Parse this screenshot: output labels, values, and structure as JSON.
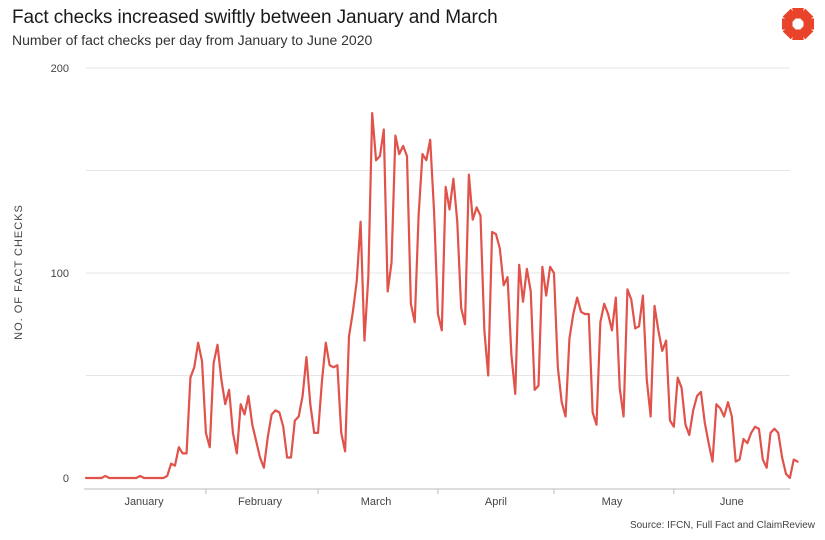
{
  "header": {
    "title": "Fact checks increased swiftly between January and March",
    "subtitle": "Number of fact checks per day from January to June 2020"
  },
  "footer": {
    "source": "Source: IFCN, Full Fact and ClaimReview"
  },
  "brand": {
    "icon": "full-fact-logo-icon",
    "color": "#e8432b"
  },
  "colors": {
    "line": "#e0524a",
    "grid": "#e6e6e6",
    "axis": "#bbbbbb"
  },
  "chart_data": {
    "type": "line",
    "title": "Fact checks increased swiftly between January and March",
    "subtitle": "Number of fact checks per day from January to June 2020",
    "xlabel": "",
    "ylabel": "NO. OF FACT CHECKS",
    "ylim": [
      0,
      200
    ],
    "yticks": [
      0,
      100,
      200
    ],
    "grid": true,
    "x_start": "2020-01-01",
    "x_end": "2020-06-30",
    "xtick_labels": [
      {
        "label": "January",
        "date": "2020-01-16"
      },
      {
        "label": "February",
        "date": "2020-02-15"
      },
      {
        "label": "March",
        "date": "2020-03-16"
      },
      {
        "label": "April",
        "date": "2020-04-16"
      },
      {
        "label": "May",
        "date": "2020-05-16"
      },
      {
        "label": "June",
        "date": "2020-06-16"
      }
    ],
    "series": [
      {
        "values": [
          0,
          0,
          0,
          0,
          0,
          1,
          0,
          0,
          0,
          0,
          0,
          0,
          0,
          0,
          1,
          0,
          0,
          0,
          0,
          0,
          0,
          1,
          7,
          6,
          15,
          12,
          12,
          49,
          54,
          66,
          57,
          22,
          15,
          56,
          65,
          48,
          36,
          43,
          22,
          12,
          36,
          31,
          40,
          26,
          18,
          10,
          5,
          20,
          31,
          33,
          32,
          25,
          10,
          10,
          28,
          30,
          40,
          59,
          36,
          22,
          22,
          47,
          66,
          55,
          54,
          55,
          22,
          13,
          69,
          81,
          96,
          125,
          67,
          98,
          178,
          155,
          157,
          170,
          91,
          105,
          167,
          158,
          162,
          157,
          85,
          76,
          128,
          158,
          155,
          165,
          130,
          80,
          72,
          142,
          131,
          146,
          125,
          83,
          75,
          148,
          126,
          132,
          128,
          72,
          50,
          120,
          119,
          112,
          94,
          98,
          60,
          41,
          104,
          86,
          102,
          91,
          43,
          45,
          103,
          89,
          103,
          100,
          54,
          37,
          30,
          68,
          80,
          88,
          81,
          80,
          80,
          32,
          26,
          76,
          85,
          80,
          72,
          88,
          44,
          30,
          92,
          87,
          73,
          74,
          89,
          48,
          30,
          84,
          72,
          62,
          67,
          28,
          25,
          49,
          44,
          26,
          21,
          33,
          40,
          42,
          27,
          17,
          8,
          36,
          34,
          30,
          37,
          30,
          8,
          9,
          19,
          17,
          22,
          25,
          24,
          9,
          5,
          22,
          24,
          22,
          10,
          2,
          0,
          9,
          8
        ]
      }
    ]
  }
}
